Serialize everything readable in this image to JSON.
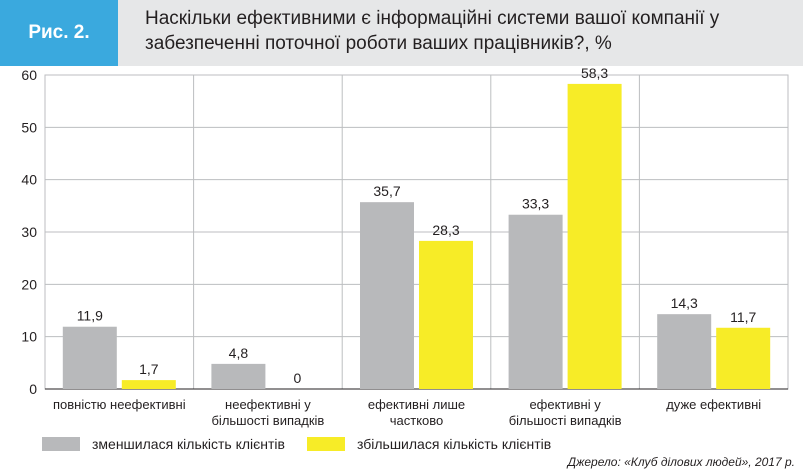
{
  "figure": {
    "label": "Рис. 2.",
    "title": "Наскільки ефективними є інформаційні системи вашої компанії у забезпеченні поточної роботи ваших працівників?, %"
  },
  "colors": {
    "accent": "#3aa9de",
    "series_gray": "#b8b9bb",
    "series_yellow": "#f7ec27",
    "grid": "#bcbec0"
  },
  "chart_data": {
    "type": "bar",
    "categories": [
      [
        "повністю неефективні"
      ],
      [
        "неефективні у",
        "більшості випадків"
      ],
      [
        "ефективні лише",
        "частково"
      ],
      [
        "ефективні у",
        "більшості випадків"
      ],
      [
        "дуже ефективні"
      ]
    ],
    "series": [
      {
        "name": "зменшилася кількість клієнтів",
        "color": "#b8b9bb",
        "values": [
          11.9,
          4.8,
          35.7,
          33.3,
          14.3
        ],
        "labels": [
          "11,9",
          "4,8",
          "35,7",
          "33,3",
          "14,3"
        ]
      },
      {
        "name": "збільшилася кількість клієнтів",
        "color": "#f7ec27",
        "values": [
          1.7,
          0,
          28.3,
          58.3,
          11.7
        ],
        "labels": [
          "1,7",
          "0",
          "28,3",
          "58,3",
          "11,7"
        ]
      }
    ],
    "ylim": [
      0,
      60
    ],
    "yticks": [
      0,
      10,
      20,
      30,
      40,
      50,
      60
    ],
    "grid": true,
    "legend_position": "bottom-left"
  },
  "source": "Джерело: «Клуб ділових людей», 2017 р."
}
